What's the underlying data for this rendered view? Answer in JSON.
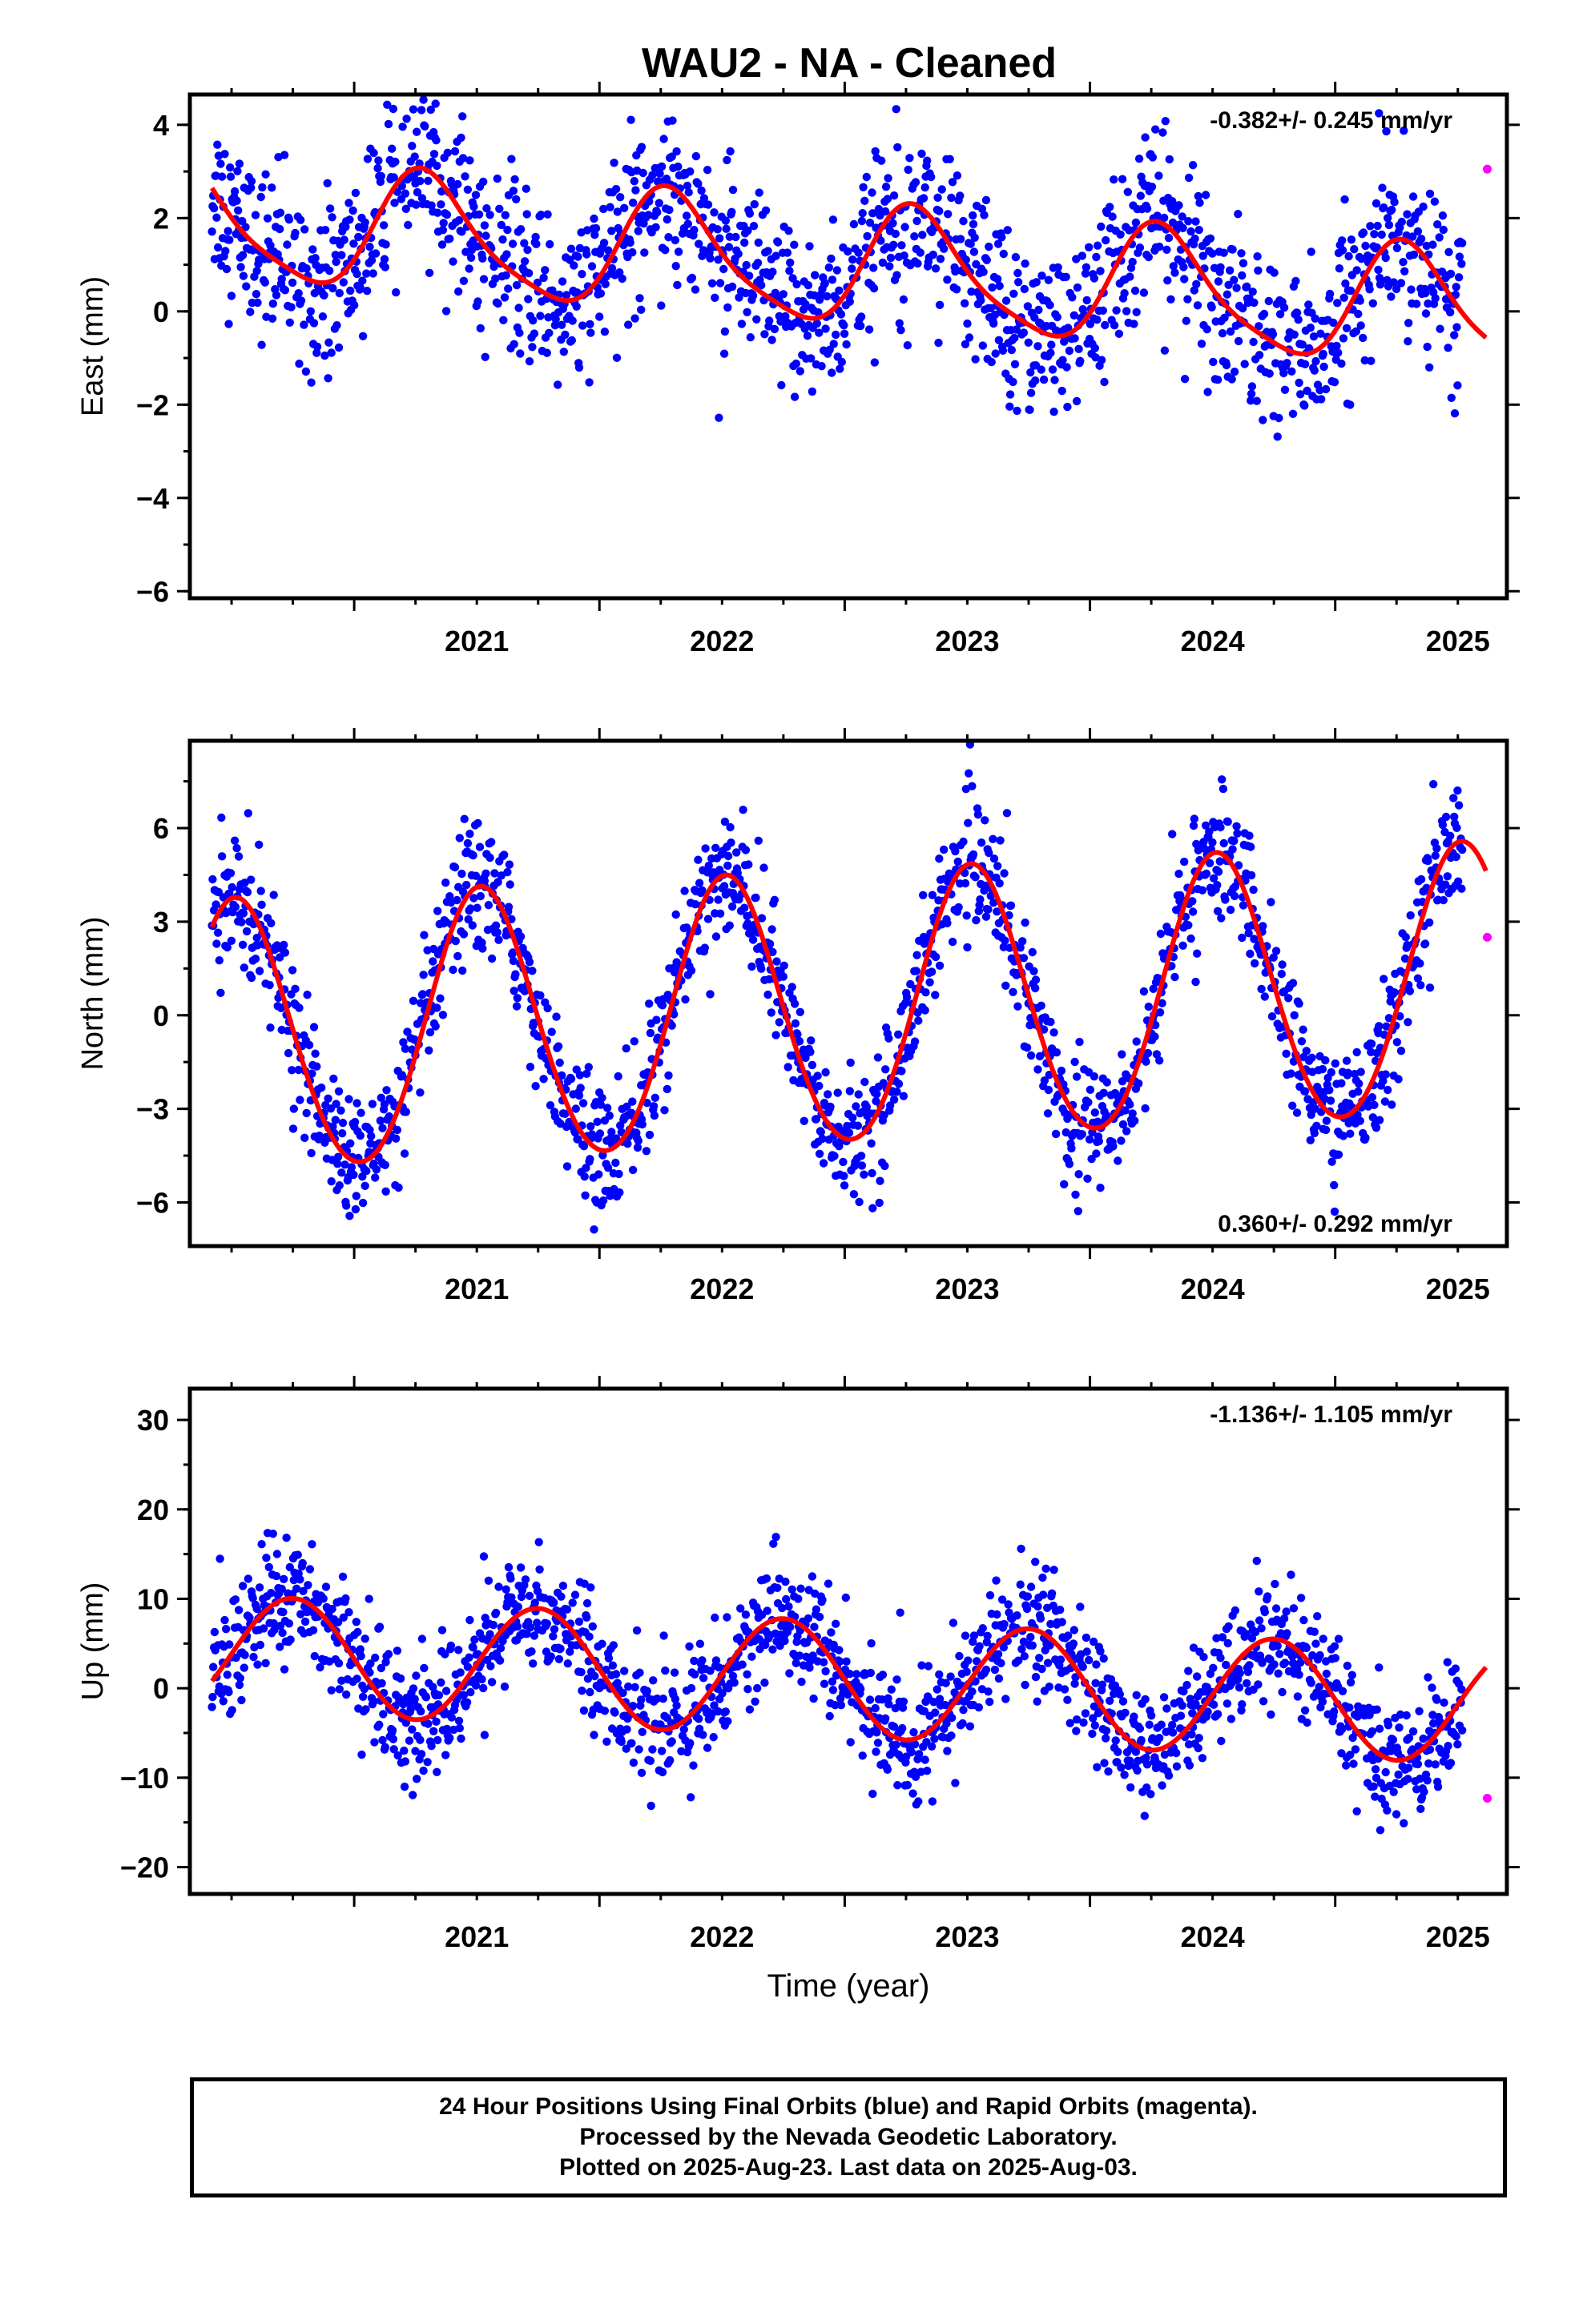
{
  "footer": {
    "line1": "24 Hour Positions Using Final Orbits (blue) and Rapid Orbits (magenta).",
    "line2": "Processed by the Nevada Geodetic Laboratory.",
    "line3": "Plotted on 2025-Aug-23. Last data on 2025-Aug-03."
  },
  "colors": {
    "final": "#0000ff",
    "rapid": "#ff00ff",
    "fit": "#ff0000"
  },
  "chart_data": [
    {
      "type": "scatter",
      "title": "WAU2  - NA - Cleaned",
      "ylabel": "East (mm)",
      "xlabel": "",
      "rate_label": "-0.382+/- 0.245 mm/yr",
      "rate_position": "top-right",
      "xlim": [
        2020.33,
        2025.7
      ],
      "ylim": [
        -6.15,
        4.65
      ],
      "yticks": [
        4,
        2,
        0,
        -2,
        -4,
        -6
      ],
      "xticks": [
        2021,
        2022,
        2023,
        2024,
        2025
      ],
      "fit": {
        "a0": 0.95,
        "trend": -0.382,
        "c1": -0.35,
        "s1": 1.2,
        "c2": -0.25,
        "s2": 0.05,
        "noise": 0.9
      },
      "rapid_points": [
        [
          2025.62,
          3.05
        ]
      ]
    },
    {
      "type": "scatter",
      "title": "",
      "ylabel": "North (mm)",
      "xlabel": "",
      "rate_label": "0.360+/- 0.292 mm/yr",
      "rate_position": "bottom-right",
      "xlim": [
        2020.33,
        2025.7
      ],
      "ylim": [
        -7.4,
        8.8
      ],
      "yticks": [
        6,
        3,
        0,
        -3,
        -6
      ],
      "xticks": [
        2021,
        2022,
        2023,
        2024,
        2025
      ],
      "fit": {
        "a0": 0.1,
        "trend": 0.36,
        "c1": -4.3,
        "s1": -0.5,
        "c2": 0.25,
        "s2": 0.0,
        "noise": 1.0
      },
      "rapid_points": [
        [
          2025.62,
          2.5
        ]
      ]
    },
    {
      "type": "scatter",
      "title": "",
      "ylabel": "Up (mm)",
      "xlabel": "Time (year)",
      "rate_label": "-1.136+/- 1.105 mm/yr",
      "rate_position": "top-right",
      "xlim": [
        2020.33,
        2025.7
      ],
      "ylim": [
        -23.0,
        33.5
      ],
      "yticks": [
        30,
        20,
        10,
        0,
        -10,
        -20
      ],
      "xticks": [
        2021,
        2022,
        2023,
        2024,
        2025
      ],
      "fit": {
        "a0": 1.0,
        "trend": -1.136,
        "c1": 0.0,
        "s1": -6.5,
        "c2": 0.0,
        "s2": 0.0,
        "noise": 3.3
      },
      "rapid_points": [
        [
          2025.62,
          -12.3
        ]
      ]
    }
  ]
}
